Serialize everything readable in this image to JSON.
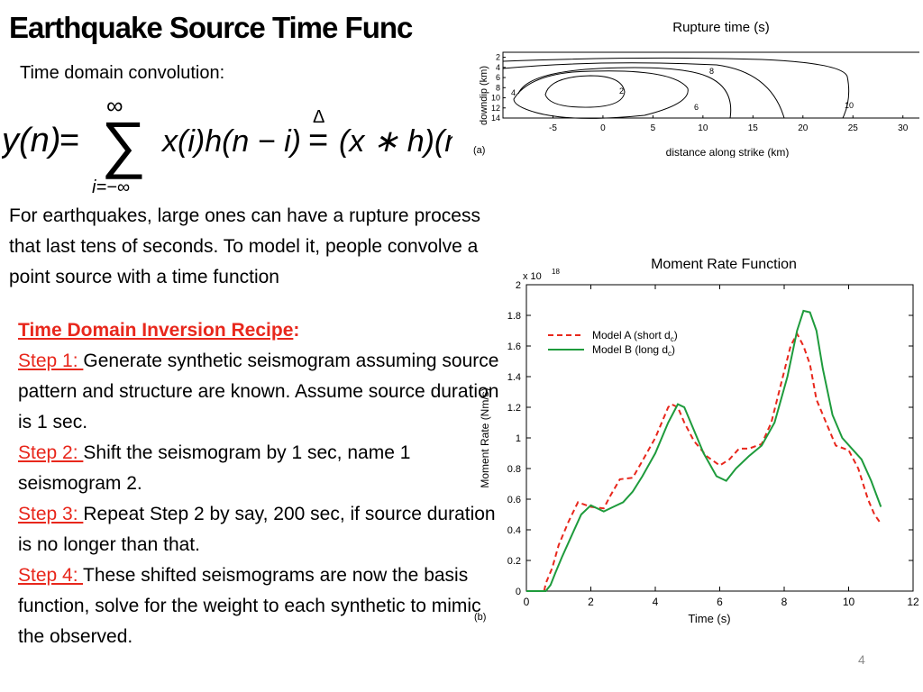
{
  "slide": {
    "title": "Earthquake Source Time Func",
    "subtitle": "Time domain convolution:",
    "formula": {
      "lhs": "y(n)",
      "eq": "=",
      "sum_upper": "∞",
      "sum_lower": "i=−∞",
      "term": "x(i)h(n − i)",
      "def_symbol": "Δ",
      "rhs": "(x ∗ h)(n)"
    },
    "paragraph": "For earthquakes, large ones can have a rupture process that last tens of seconds.  To model it, people convolve a point source with a time function",
    "recipe": {
      "heading": "Time Domain Inversion Recipe",
      "heading_colon": ":",
      "steps": [
        {
          "label": "Step 1: ",
          "text": "Generate synthetic seismogram assuming source pattern and structure are known.  Assume source duration is 1 sec."
        },
        {
          "label": "Step 2: ",
          "text": "Shift the seismogram by 1 sec, name 1 seismogram 2."
        },
        {
          "label": "Step 3: ",
          "text": "Repeat Step 2 by say, 200 sec, if source duration is no longer than that."
        },
        {
          "label": "Step 4: ",
          "text": "These shifted seismograms are now the basis function, solve for the weight to each synthetic to mimic the observed."
        }
      ]
    },
    "page_number": "4",
    "colors": {
      "red": "#e8271c",
      "green": "#1e9b3c"
    }
  },
  "chart_data": [
    {
      "type": "contour",
      "title": "Rupture time (s)",
      "panel_label": "(a)",
      "xlabel": "distance along strike (km)",
      "ylabel": "downdip (km)",
      "x_ticks": [
        "-5",
        "0",
        "5",
        "10",
        "15",
        "20",
        "25",
        "30"
      ],
      "y_ticks": [
        "2",
        "4",
        "6",
        "8",
        "10",
        "12",
        "14"
      ],
      "xlim": [
        -10,
        33
      ],
      "ylim": [
        14,
        1
      ],
      "contour_labels": [
        {
          "value": "2",
          "x": 3.5,
          "y": 8
        },
        {
          "value": "4",
          "x": -7,
          "y": 9
        },
        {
          "value": "6",
          "x": 11,
          "y": 12.5
        },
        {
          "value": "8",
          "x": 13,
          "y": 4
        },
        {
          "value": "10",
          "x": 26,
          "y": 12
        }
      ]
    },
    {
      "type": "line",
      "title": "Moment Rate Function",
      "panel_label": "(b)",
      "xlabel": "Time (s)",
      "ylabel": "Moment Rate (Nm/s)",
      "y_multiplier": "x 10",
      "y_multiplier_exp": "18",
      "xlim": [
        0,
        12
      ],
      "ylim": [
        0,
        2
      ],
      "x_ticks": [
        "0",
        "2",
        "4",
        "6",
        "8",
        "10",
        "12"
      ],
      "y_ticks": [
        "0",
        "0.2",
        "0.4",
        "0.6",
        "0.8",
        "1",
        "1.2",
        "1.4",
        "1.6",
        "1.8",
        "2"
      ],
      "legend_position": "top-left",
      "series": [
        {
          "name": "Model A (short d",
          "name_sub": "c",
          "name_end": ")",
          "style": "dashed",
          "color": "#e8271c",
          "x": [
            0,
            0.55,
            0.6,
            0.7,
            0.8,
            1.0,
            1.3,
            1.6,
            2.0,
            2.4,
            2.6,
            2.9,
            3.3,
            3.6,
            4.0,
            4.4,
            4.5,
            4.7,
            4.9,
            5.2,
            5.6,
            6.0,
            6.3,
            6.6,
            6.9,
            7.3,
            7.6,
            7.9,
            8.2,
            8.4,
            8.6,
            8.8,
            9.0,
            9.3,
            9.6,
            10.0,
            10.3,
            10.6,
            10.8,
            11.0
          ],
          "y": [
            0,
            0,
            0.05,
            0.1,
            0.15,
            0.3,
            0.45,
            0.58,
            0.55,
            0.54,
            0.62,
            0.73,
            0.74,
            0.85,
            1.0,
            1.2,
            1.22,
            1.2,
            1.1,
            0.98,
            0.88,
            0.82,
            0.86,
            0.93,
            0.93,
            0.96,
            1.1,
            1.35,
            1.6,
            1.68,
            1.6,
            1.48,
            1.25,
            1.1,
            0.95,
            0.92,
            0.8,
            0.6,
            0.5,
            0.44
          ]
        },
        {
          "name": "Model B (long d",
          "name_sub": "c",
          "name_end": ")",
          "style": "solid",
          "color": "#1e9b3c",
          "x": [
            0,
            0.6,
            0.75,
            0.9,
            1.1,
            1.4,
            1.7,
            2.0,
            2.4,
            2.7,
            3.0,
            3.3,
            3.6,
            4.0,
            4.4,
            4.7,
            4.9,
            5.2,
            5.5,
            5.9,
            6.2,
            6.5,
            6.9,
            7.3,
            7.7,
            8.1,
            8.4,
            8.6,
            8.8,
            9.0,
            9.2,
            9.5,
            9.8,
            10.1,
            10.4,
            10.7,
            11.0
          ],
          "y": [
            0,
            0,
            0.04,
            0.12,
            0.22,
            0.36,
            0.5,
            0.56,
            0.52,
            0.55,
            0.58,
            0.65,
            0.75,
            0.9,
            1.1,
            1.22,
            1.2,
            1.05,
            0.9,
            0.75,
            0.72,
            0.8,
            0.88,
            0.95,
            1.1,
            1.4,
            1.7,
            1.83,
            1.82,
            1.7,
            1.45,
            1.15,
            1.0,
            0.93,
            0.86,
            0.72,
            0.55
          ]
        }
      ]
    }
  ]
}
